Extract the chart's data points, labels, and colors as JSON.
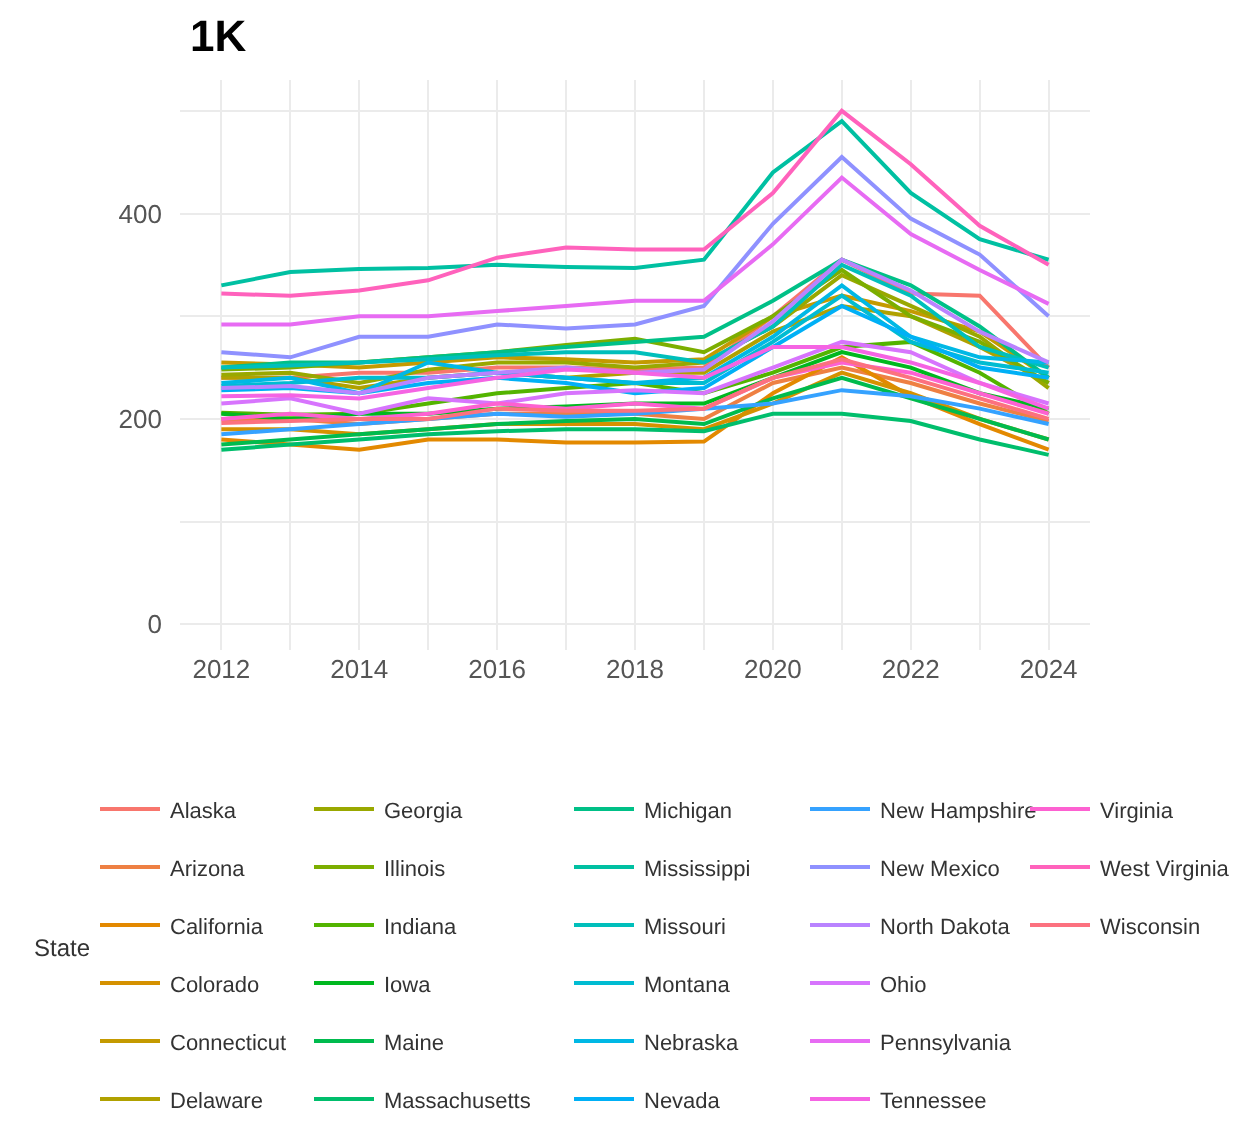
{
  "chart_data": {
    "type": "line",
    "title": "1K",
    "legend_title": "State",
    "x": [
      2012,
      2013,
      2014,
      2015,
      2016,
      2017,
      2018,
      2019,
      2020,
      2021,
      2022,
      2023,
      2024
    ],
    "xlim": [
      2011.4,
      2024.6
    ],
    "xticks": [
      2012,
      {
        "value": 2013,
        "label": null
      },
      2014,
      {
        "value": 2015,
        "label": null
      },
      2016,
      {
        "value": 2017,
        "label": null
      },
      2018,
      {
        "value": 2019,
        "label": null
      },
      2020,
      {
        "value": 2021,
        "label": null
      },
      2022,
      {
        "value": 2023,
        "label": null
      },
      2024
    ],
    "ylim": [
      -25,
      530
    ],
    "yticks": [
      0,
      {
        "value": 100,
        "label": null
      },
      200,
      {
        "value": 300,
        "label": null
      },
      400,
      {
        "value": 500,
        "label": null
      }
    ],
    "grid": true,
    "legend": "bottom",
    "line_style": "solid",
    "marker": "none",
    "series": [
      {
        "name": "Alaska",
        "color": "#f8766d",
        "values": [
          240,
          240,
          245,
          245,
          250,
          250,
          248,
          250,
          300,
          355,
          322,
          320,
          250
        ]
      },
      {
        "name": "Arizona",
        "color": "#ee8043",
        "values": [
          200,
          200,
          195,
          200,
          205,
          205,
          205,
          200,
          235,
          250,
          235,
          215,
          198
        ]
      },
      {
        "name": "California",
        "color": "#e38900",
        "values": [
          180,
          175,
          170,
          180,
          180,
          177,
          177,
          178,
          225,
          260,
          222,
          195,
          170
        ]
      },
      {
        "name": "Colorado",
        "color": "#d59100",
        "values": [
          190,
          190,
          185,
          190,
          195,
          195,
          195,
          190,
          215,
          245,
          225,
          200,
          180
        ]
      },
      {
        "name": "Connecticut",
        "color": "#c49a00",
        "values": [
          255,
          253,
          250,
          255,
          260,
          258,
          255,
          258,
          300,
          320,
          305,
          285,
          240
        ]
      },
      {
        "name": "Delaware",
        "color": "#b0a100",
        "values": [
          240,
          240,
          230,
          240,
          245,
          240,
          245,
          245,
          285,
          310,
          300,
          270,
          235
        ]
      },
      {
        "name": "Georgia",
        "color": "#99a800",
        "values": [
          243,
          245,
          235,
          248,
          255,
          255,
          250,
          255,
          290,
          340,
          310,
          280,
          230
        ]
      },
      {
        "name": "Illinois",
        "color": "#7cae00",
        "values": [
          248,
          250,
          255,
          260,
          265,
          272,
          278,
          265,
          300,
          345,
          300,
          275,
          235
        ]
      },
      {
        "name": "Indiana",
        "color": "#53b400",
        "values": [
          206,
          204,
          205,
          215,
          225,
          230,
          235,
          225,
          245,
          270,
          275,
          245,
          205
        ]
      },
      {
        "name": "Iowa",
        "color": "#00b81f",
        "values": [
          205,
          200,
          205,
          205,
          210,
          212,
          215,
          215,
          240,
          265,
          250,
          225,
          210
        ]
      },
      {
        "name": "Maine",
        "color": "#00bb4e",
        "values": [
          175,
          180,
          185,
          190,
          195,
          198,
          200,
          195,
          220,
          240,
          220,
          200,
          180
        ]
      },
      {
        "name": "Massachusetts",
        "color": "#00be6c",
        "values": [
          170,
          175,
          180,
          185,
          188,
          190,
          190,
          188,
          205,
          205,
          198,
          180,
          165
        ]
      },
      {
        "name": "Michigan",
        "color": "#00c087",
        "values": [
          250,
          255,
          255,
          260,
          265,
          270,
          275,
          280,
          315,
          355,
          330,
          290,
          240
        ]
      },
      {
        "name": "Mississippi",
        "color": "#00c0a2",
        "values": [
          330,
          343,
          346,
          347,
          350,
          348,
          347,
          355,
          440,
          490,
          420,
          375,
          355
        ]
      },
      {
        "name": "Missouri",
        "color": "#00bfbb",
        "values": [
          250,
          252,
          255,
          258,
          262,
          265,
          265,
          255,
          290,
          350,
          320,
          270,
          250
        ]
      },
      {
        "name": "Montana",
        "color": "#00bcd2",
        "values": [
          232,
          235,
          240,
          240,
          245,
          240,
          235,
          235,
          275,
          320,
          275,
          255,
          245
        ]
      },
      {
        "name": "Nebraska",
        "color": "#00b8e5",
        "values": [
          235,
          240,
          225,
          255,
          245,
          240,
          235,
          240,
          280,
          330,
          280,
          260,
          255
        ]
      },
      {
        "name": "Nevada",
        "color": "#00b0f6",
        "values": [
          228,
          230,
          225,
          235,
          240,
          235,
          225,
          230,
          270,
          310,
          280,
          250,
          240
        ]
      },
      {
        "name": "New Hampshire",
        "color": "#35a2ff",
        "values": [
          185,
          190,
          195,
          200,
          205,
          202,
          205,
          210,
          215,
          228,
          222,
          210,
          195
        ]
      },
      {
        "name": "New Mexico",
        "color": "#8f91ff",
        "values": [
          265,
          260,
          280,
          280,
          292,
          288,
          292,
          310,
          390,
          455,
          395,
          360,
          300
        ]
      },
      {
        "name": "North Dakota",
        "color": "#b983ff",
        "values": [
          230,
          232,
          225,
          240,
          245,
          250,
          245,
          248,
          295,
          355,
          325,
          285,
          255
        ]
      },
      {
        "name": "Ohio",
        "color": "#d774fd",
        "values": [
          215,
          220,
          205,
          220,
          215,
          225,
          228,
          225,
          250,
          275,
          265,
          235,
          215
        ]
      },
      {
        "name": "Pennsylvania",
        "color": "#e76bf3",
        "values": [
          292,
          292,
          300,
          300,
          305,
          310,
          315,
          315,
          370,
          435,
          380,
          345,
          312
        ]
      },
      {
        "name": "Tennessee",
        "color": "#f564e3",
        "values": [
          222,
          223,
          220,
          230,
          240,
          248,
          245,
          240,
          270,
          270,
          255,
          235,
          210
        ]
      },
      {
        "name": "Virginia",
        "color": "#fd61d1",
        "values": [
          200,
          205,
          200,
          205,
          215,
          210,
          215,
          210,
          240,
          255,
          245,
          225,
          205
        ]
      },
      {
        "name": "West Virginia",
        "color": "#ff62bc",
        "values": [
          322,
          320,
          325,
          335,
          357,
          367,
          365,
          365,
          420,
          500,
          448,
          388,
          350
        ]
      },
      {
        "name": "Wisconsin",
        "color": "#fc717f",
        "values": [
          196,
          198,
          200,
          200,
          210,
          208,
          208,
          210,
          240,
          258,
          240,
          220,
          200
        ]
      }
    ]
  }
}
